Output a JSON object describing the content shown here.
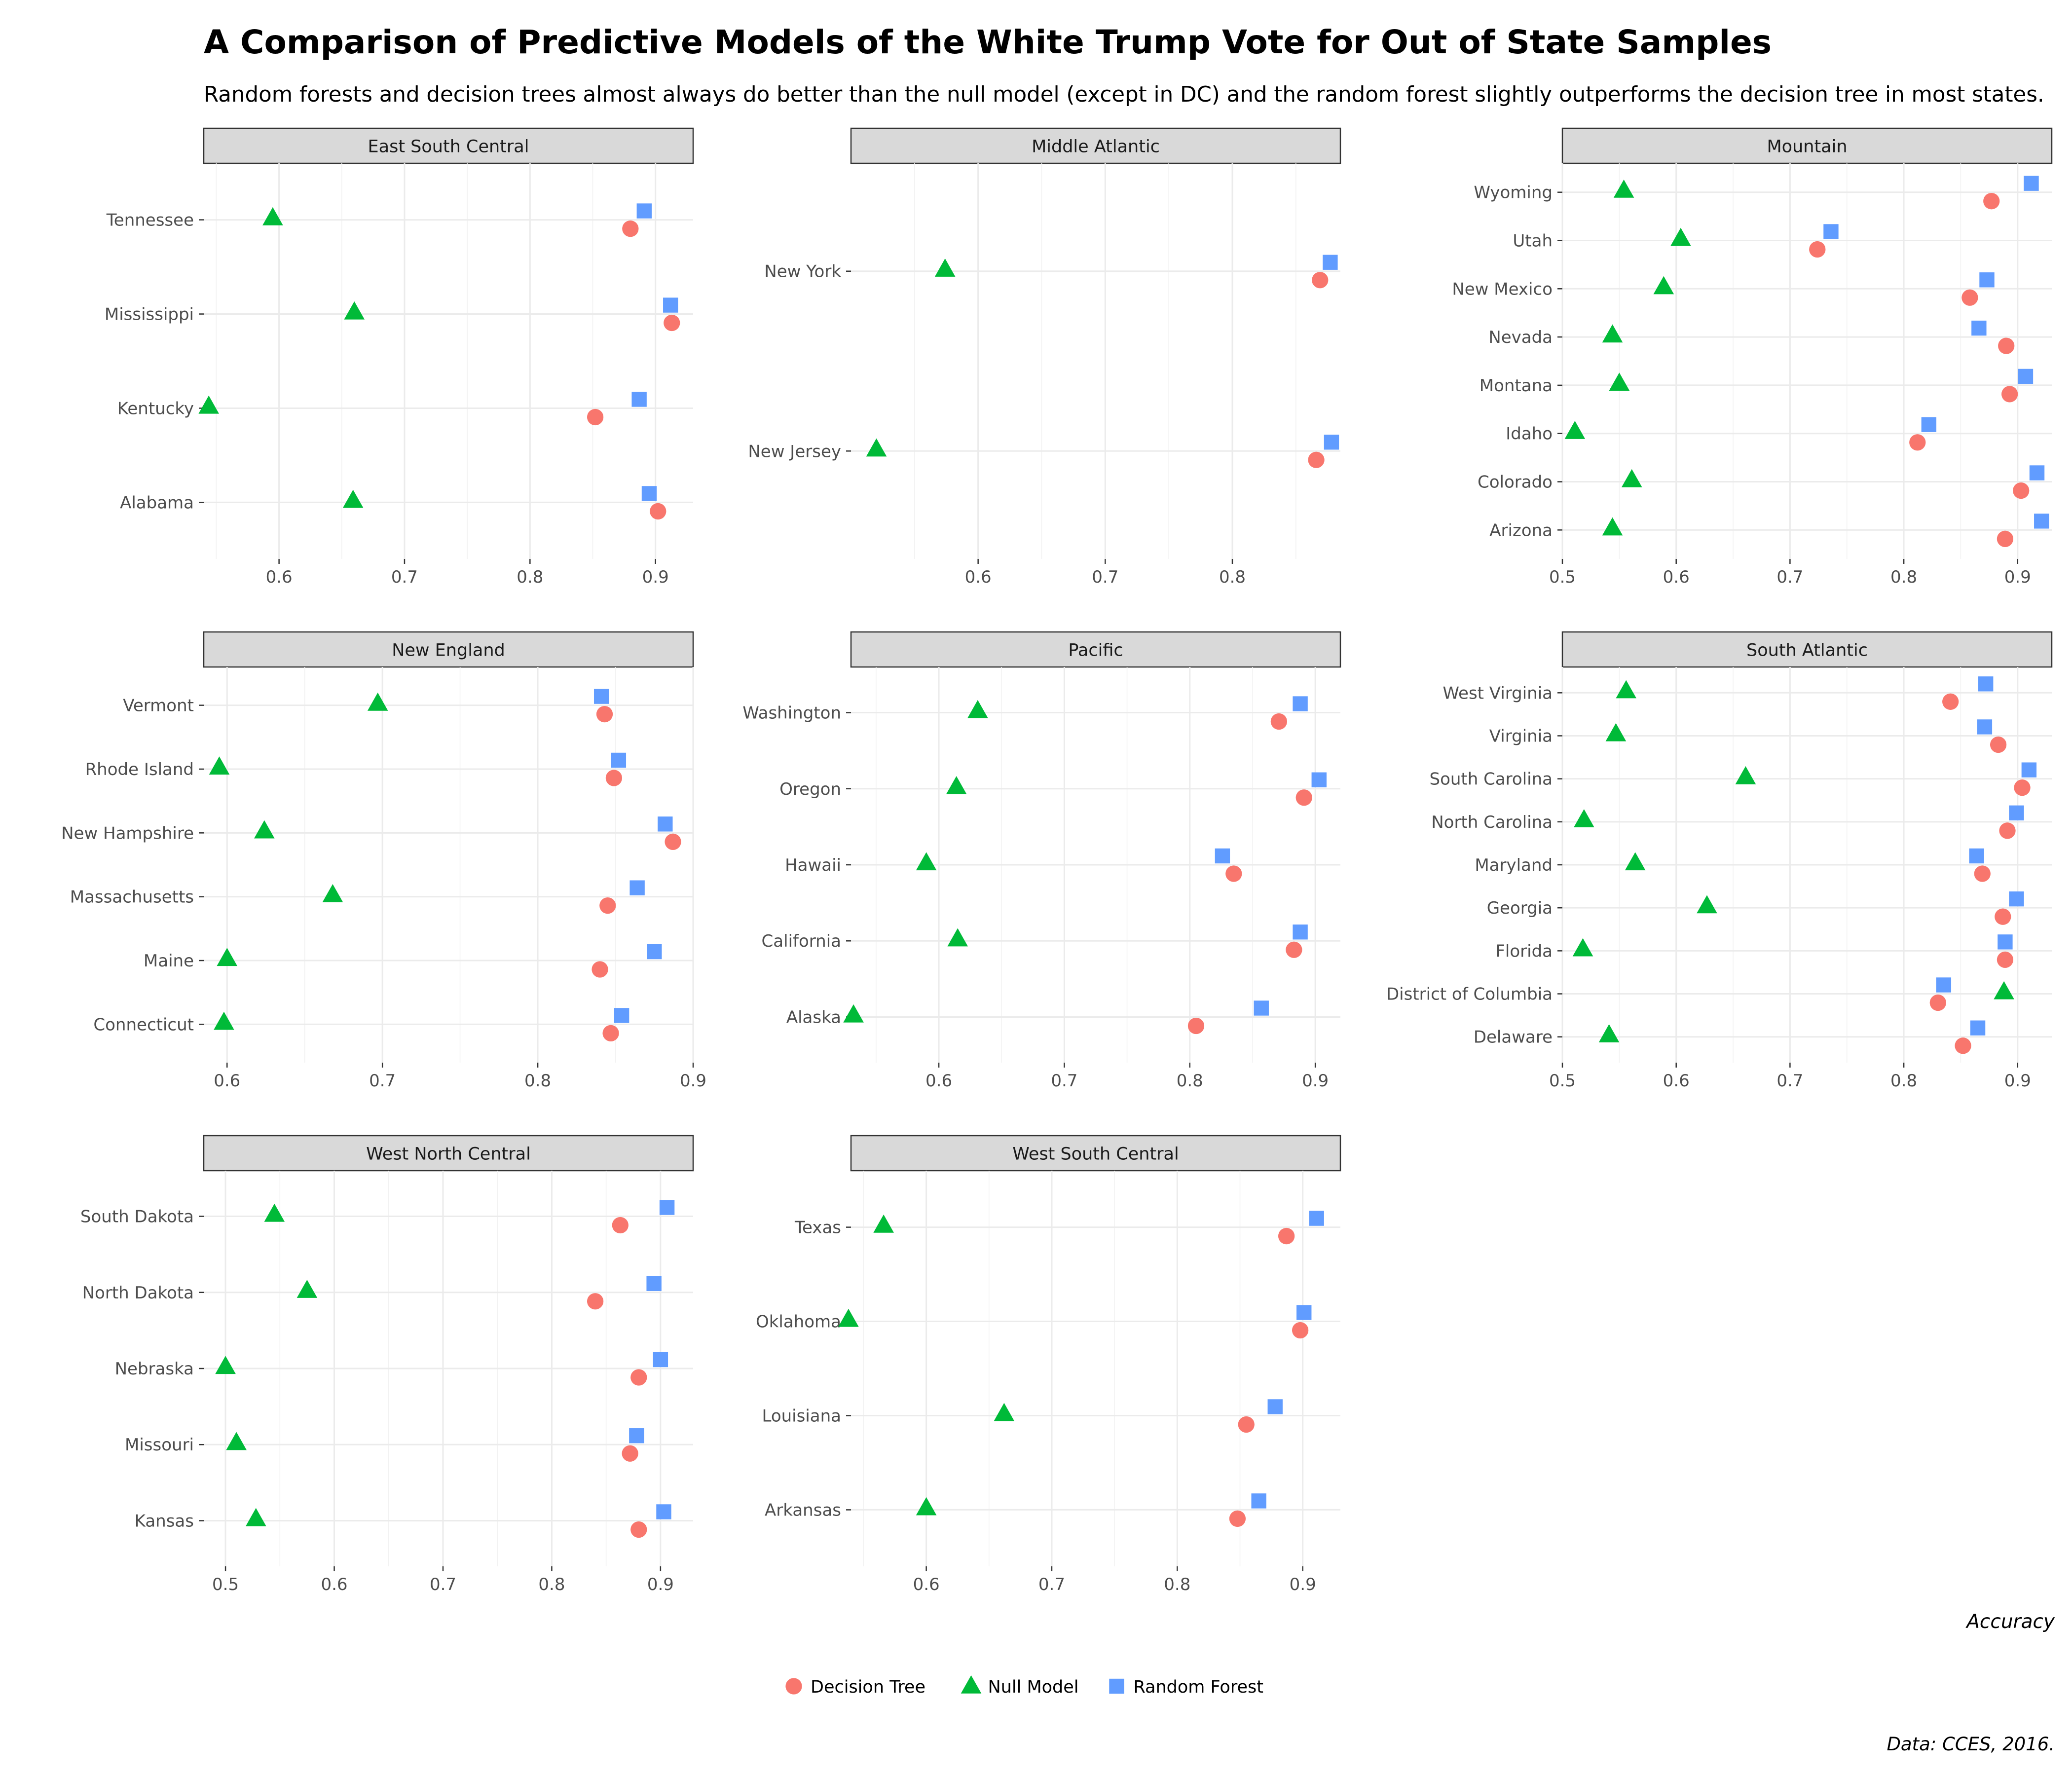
{
  "chart_data": {
    "type": "scatter",
    "title": "A Comparison of Predictive Models of the White Trump Vote for Out of State Samples",
    "subtitle": "Random forests and decision trees almost always do better than the null model (except in DC) and the random forest slightly outperforms the decision tree in most states.",
    "xlabel": "Accuracy",
    "caption": "Data: CCES, 2016.",
    "legend_position": "bottom",
    "series": [
      {
        "name": "Decision Tree",
        "color": "#F8766D",
        "shape": "circle-icon"
      },
      {
        "name": "Null Model",
        "color": "#00BA38",
        "shape": "triangle-icon"
      },
      {
        "name": "Random Forest",
        "color": "#619CFF",
        "shape": "square-icon"
      }
    ],
    "facets": [
      {
        "name": "East South Central",
        "xlim": [
          0.54,
          0.93
        ],
        "xticks": [
          0.6,
          0.7,
          0.8,
          0.9
        ],
        "xtick_labels": [
          "0.6",
          "0.7",
          "0.8",
          "0.9"
        ],
        "states": [
          {
            "state": "Tennessee",
            "decision_tree": 0.88,
            "null_model": 0.595,
            "random_forest": 0.891
          },
          {
            "state": "Mississippi",
            "decision_tree": 0.913,
            "null_model": 0.66,
            "random_forest": 0.912
          },
          {
            "state": "Kentucky",
            "decision_tree": 0.852,
            "null_model": 0.544,
            "random_forest": 0.887
          },
          {
            "state": "Alabama",
            "decision_tree": 0.902,
            "null_model": 0.659,
            "random_forest": 0.895
          }
        ]
      },
      {
        "name": "Middle Atlantic",
        "xlim": [
          0.5,
          0.885
        ],
        "xticks": [
          0.6,
          0.7,
          0.8
        ],
        "xtick_labels": [
          "0.6",
          "0.7",
          "0.8"
        ],
        "states": [
          {
            "state": "New York",
            "decision_tree": 0.869,
            "null_model": 0.574,
            "random_forest": 0.877
          },
          {
            "state": "New Jersey",
            "decision_tree": 0.866,
            "null_model": 0.52,
            "random_forest": 0.878
          }
        ]
      },
      {
        "name": "Mountain",
        "xlim": [
          0.5,
          0.93
        ],
        "xticks": [
          0.5,
          0.6,
          0.7,
          0.8,
          0.9
        ],
        "xtick_labels": [
          "0.5",
          "0.6",
          "0.7",
          "0.8",
          "0.9"
        ],
        "states": [
          {
            "state": "Wyoming",
            "decision_tree": 0.877,
            "null_model": 0.554,
            "random_forest": 0.912
          },
          {
            "state": "Utah",
            "decision_tree": 0.724,
            "null_model": 0.604,
            "random_forest": 0.736
          },
          {
            "state": "New Mexico",
            "decision_tree": 0.858,
            "null_model": 0.589,
            "random_forest": 0.873
          },
          {
            "state": "Nevada",
            "decision_tree": 0.89,
            "null_model": 0.544,
            "random_forest": 0.866
          },
          {
            "state": "Montana",
            "decision_tree": 0.893,
            "null_model": 0.55,
            "random_forest": 0.907
          },
          {
            "state": "Idaho",
            "decision_tree": 0.812,
            "null_model": 0.511,
            "random_forest": 0.822
          },
          {
            "state": "Colorado",
            "decision_tree": 0.903,
            "null_model": 0.561,
            "random_forest": 0.917
          },
          {
            "state": "Arizona",
            "decision_tree": 0.889,
            "null_model": 0.544,
            "random_forest": 0.921
          }
        ]
      },
      {
        "name": "New England",
        "xlim": [
          0.585,
          0.9
        ],
        "xticks": [
          0.6,
          0.7,
          0.8,
          0.9
        ],
        "xtick_labels": [
          "0.6",
          "0.7",
          "0.8",
          "0.9"
        ],
        "states": [
          {
            "state": "Vermont",
            "decision_tree": 0.843,
            "null_model": 0.697,
            "random_forest": 0.841
          },
          {
            "state": "Rhode Island",
            "decision_tree": 0.849,
            "null_model": 0.595,
            "random_forest": 0.852
          },
          {
            "state": "New Hampshire",
            "decision_tree": 0.887,
            "null_model": 0.624,
            "random_forest": 0.882
          },
          {
            "state": "Massachusetts",
            "decision_tree": 0.845,
            "null_model": 0.668,
            "random_forest": 0.864
          },
          {
            "state": "Maine",
            "decision_tree": 0.84,
            "null_model": 0.6,
            "random_forest": 0.875
          },
          {
            "state": "Connecticut",
            "decision_tree": 0.847,
            "null_model": 0.598,
            "random_forest": 0.854
          }
        ]
      },
      {
        "name": "Pacific",
        "xlim": [
          0.53,
          0.92
        ],
        "xticks": [
          0.6,
          0.7,
          0.8,
          0.9
        ],
        "xtick_labels": [
          "0.6",
          "0.7",
          "0.8",
          "0.9"
        ],
        "states": [
          {
            "state": "Washington",
            "decision_tree": 0.871,
            "null_model": 0.631,
            "random_forest": 0.888
          },
          {
            "state": "Oregon",
            "decision_tree": 0.891,
            "null_model": 0.614,
            "random_forest": 0.903
          },
          {
            "state": "Hawaii",
            "decision_tree": 0.835,
            "null_model": 0.59,
            "random_forest": 0.826
          },
          {
            "state": "California",
            "decision_tree": 0.883,
            "null_model": 0.615,
            "random_forest": 0.888
          },
          {
            "state": "Alaska",
            "decision_tree": 0.805,
            "null_model": 0.532,
            "random_forest": 0.857
          }
        ]
      },
      {
        "name": "South Atlantic",
        "xlim": [
          0.5,
          0.93
        ],
        "xticks": [
          0.5,
          0.6,
          0.7,
          0.8,
          0.9
        ],
        "xtick_labels": [
          "0.5",
          "0.6",
          "0.7",
          "0.8",
          "0.9"
        ],
        "states": [
          {
            "state": "West Virginia",
            "decision_tree": 0.841,
            "null_model": 0.556,
            "random_forest": 0.872
          },
          {
            "state": "Virginia",
            "decision_tree": 0.883,
            "null_model": 0.547,
            "random_forest": 0.871
          },
          {
            "state": "South Carolina",
            "decision_tree": 0.904,
            "null_model": 0.661,
            "random_forest": 0.91
          },
          {
            "state": "North Carolina",
            "decision_tree": 0.891,
            "null_model": 0.519,
            "random_forest": 0.899
          },
          {
            "state": "Maryland",
            "decision_tree": 0.869,
            "null_model": 0.564,
            "random_forest": 0.864
          },
          {
            "state": "Georgia",
            "decision_tree": 0.887,
            "null_model": 0.627,
            "random_forest": 0.899
          },
          {
            "state": "Florida",
            "decision_tree": 0.889,
            "null_model": 0.518,
            "random_forest": 0.889
          },
          {
            "state": "District of Columbia",
            "decision_tree": 0.83,
            "null_model": 0.888,
            "random_forest": 0.835
          },
          {
            "state": "Delaware",
            "decision_tree": 0.852,
            "null_model": 0.541,
            "random_forest": 0.865
          }
        ]
      },
      {
        "name": "West North Central",
        "xlim": [
          0.48,
          0.93
        ],
        "xticks": [
          0.5,
          0.6,
          0.7,
          0.8,
          0.9
        ],
        "xtick_labels": [
          "0.5",
          "0.6",
          "0.7",
          "0.8",
          "0.9"
        ],
        "states": [
          {
            "state": "South Dakota",
            "decision_tree": 0.863,
            "null_model": 0.545,
            "random_forest": 0.906
          },
          {
            "state": "North Dakota",
            "decision_tree": 0.84,
            "null_model": 0.575,
            "random_forest": 0.894
          },
          {
            "state": "Nebraska",
            "decision_tree": 0.88,
            "null_model": 0.5,
            "random_forest": 0.9
          },
          {
            "state": "Missouri",
            "decision_tree": 0.872,
            "null_model": 0.51,
            "random_forest": 0.878
          },
          {
            "state": "Kansas",
            "decision_tree": 0.88,
            "null_model": 0.528,
            "random_forest": 0.903
          }
        ]
      },
      {
        "name": "West South Central",
        "xlim": [
          0.54,
          0.93
        ],
        "xticks": [
          0.6,
          0.7,
          0.8,
          0.9
        ],
        "xtick_labels": [
          "0.6",
          "0.7",
          "0.8",
          "0.9"
        ],
        "states": [
          {
            "state": "Texas",
            "decision_tree": 0.887,
            "null_model": 0.566,
            "random_forest": 0.911
          },
          {
            "state": "Oklahoma",
            "decision_tree": 0.898,
            "null_model": 0.538,
            "random_forest": 0.901
          },
          {
            "state": "Louisiana",
            "decision_tree": 0.855,
            "null_model": 0.662,
            "random_forest": 0.878
          },
          {
            "state": "Arkansas",
            "decision_tree": 0.848,
            "null_model": 0.6,
            "random_forest": 0.865
          }
        ]
      }
    ]
  }
}
